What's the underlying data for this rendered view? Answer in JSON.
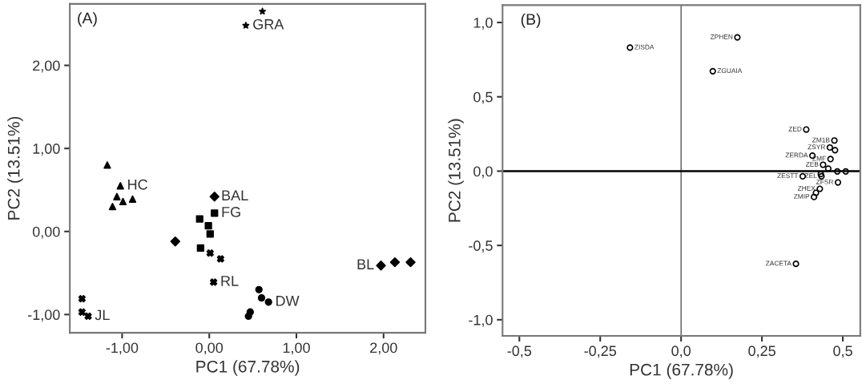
{
  "chart_data": [
    {
      "type": "scatter",
      "xlabel": "PC1 (67.78%)",
      "ylabel": "PC2 (13.51%)",
      "xlim": [
        -1.6,
        2.48
      ],
      "ylim": [
        -1.22,
        2.74
      ],
      "xticks": [
        {
          "value": -1,
          "label": "-1,00"
        },
        {
          "value": 0,
          "label": "0,00"
        },
        {
          "value": 1,
          "label": "1,00"
        },
        {
          "value": 2,
          "label": "2,00"
        }
      ],
      "yticks": [
        {
          "value": -1,
          "label": "-1,00"
        },
        {
          "value": 0,
          "label": "0,00"
        },
        {
          "value": 1,
          "label": "1,00"
        },
        {
          "value": 2,
          "label": "2,00"
        }
      ],
      "grid": false,
      "legend": false,
      "series": [
        {
          "color": "#000000",
          "marker": "star",
          "x": [
            0.42,
            0.61
          ],
          "values": [
            2.48,
            2.65
          ]
        },
        {
          "color": "#000000",
          "marker": "triangle",
          "x": [
            -1.17,
            -1.02,
            -1.06,
            -0.99,
            -0.88,
            -1.11
          ],
          "values": [
            0.8,
            0.55,
            0.42,
            0.36,
            0.39,
            0.3
          ]
        },
        {
          "color": "#000000",
          "marker": "diamond",
          "x": [
            0.06,
            -0.39
          ],
          "values": [
            0.42,
            -0.12
          ]
        },
        {
          "color": "#000000",
          "marker": "square",
          "x": [
            0.06,
            -0.11,
            -0.01,
            0.01,
            -0.1
          ],
          "values": [
            0.22,
            0.15,
            0.07,
            -0.03,
            -0.2
          ]
        },
        {
          "color": "#000000",
          "marker": "cross",
          "x": [
            0.01,
            0.13,
            0.05
          ],
          "values": [
            -0.26,
            -0.33,
            -0.61
          ]
        },
        {
          "color": "#000000",
          "marker": "circle",
          "x": [
            0.57,
            0.6,
            0.68,
            0.47,
            0.45
          ],
          "values": [
            -0.7,
            -0.8,
            -0.85,
            -0.97,
            -1.02
          ]
        },
        {
          "color": "#000000",
          "marker": "cross",
          "x": [
            -1.46,
            -1.46,
            -1.41,
            -1.39
          ],
          "values": [
            -0.81,
            -0.97,
            null,
            -1.02
          ]
        },
        {
          "color": "#000000",
          "marker": "diamond",
          "x": [
            1.97,
            2.13,
            2.31
          ],
          "values": [
            -0.41,
            -0.37,
            -0.37
          ]
        }
      ],
      "annotations": [
        "(A)",
        {
          "text": "GRA",
          "x": 0.42,
          "y": 2.48
        },
        {
          "text": "HC",
          "x": -1.02,
          "y": 0.55
        },
        {
          "text": "BAL",
          "x": 0.06,
          "y": 0.42
        },
        {
          "text": "FG",
          "x": 0.06,
          "y": 0.22
        },
        {
          "text": "RL",
          "x": 0.05,
          "y": -0.61
        },
        {
          "text": "DW",
          "x": 0.68,
          "y": -0.85
        },
        {
          "text": "JL",
          "x": -1.39,
          "y": -1.02
        },
        {
          "text": "BL",
          "x": 1.97,
          "y": -0.41
        }
      ]
    },
    {
      "type": "scatter",
      "xlabel": "PC1 (67.78%)",
      "ylabel": "PC2 (13.51%)",
      "xlim": [
        -0.552,
        0.554
      ],
      "ylim": [
        -1.109,
        1.117
      ],
      "xticks": [
        {
          "value": -0.5,
          "label": "-0,5"
        },
        {
          "value": -0.25,
          "label": "-0,25"
        },
        {
          "value": 0,
          "label": "0,0"
        },
        {
          "value": 0.25,
          "label": "0,25"
        },
        {
          "value": 0.5,
          "label": "0,5"
        }
      ],
      "yticks": [
        {
          "value": -1,
          "label": "-1,0"
        },
        {
          "value": -0.5,
          "label": "-0,5"
        },
        {
          "value": 0,
          "label": "0,0"
        },
        {
          "value": 0.5,
          "label": "0,5"
        },
        {
          "value": 1,
          "label": "1,0"
        }
      ],
      "grid": false,
      "legend": false,
      "marker": "circle",
      "ref_lines": [
        {
          "axis": "x",
          "value": 0,
          "color": "#555555"
        },
        {
          "axis": "y",
          "value": 0,
          "color": "#000000"
        }
      ],
      "series": [
        {
          "color": "#000000",
          "x": [
            -0.158,
            0.174,
            0.098,
            0.355,
            0.387,
            0.474,
            0.46,
            0.476,
            0.462,
            0.406,
            0.439,
            0.455,
            0.483,
            0.509,
            0.432,
            0.434,
            0.485,
            0.429,
            0.417,
            0.411,
            0.376
          ],
          "values": [
            0.831,
            0.9,
            0.672,
            -0.624,
            0.28,
            0.206,
            0.159,
            0.141,
            0.081,
            0.104,
            0.043,
            0.017,
            -0.002,
            -0.002,
            -0.02,
            -0.035,
            -0.076,
            -0.119,
            -0.146,
            -0.174,
            -0.035
          ]
        }
      ],
      "annotations": [
        "(B)",
        {
          "text": "ZISDA",
          "x": -0.158,
          "y": 0.831
        },
        {
          "text": "ZPHEN",
          "x": 0.174,
          "y": 0.9
        },
        {
          "text": "ZGUAIA",
          "x": 0.098,
          "y": 0.672
        },
        {
          "text": "ZACETA",
          "x": 0.355,
          "y": -0.624
        },
        {
          "text": "ZED",
          "x": 0.387,
          "y": 0.28
        },
        {
          "text": "ZSYR",
          "x": 0.46,
          "y": 0.159
        },
        {
          "text": "ZM1B",
          "x": 0.474,
          "y": 0.206
        },
        {
          "text": "ZMF",
          "x": 0.462,
          "y": 0.081
        },
        {
          "text": "ZERDA",
          "x": 0.406,
          "y": 0.104
        },
        {
          "text": "ZEB",
          "x": 0.439,
          "y": 0.043
        },
        {
          "text": "ZESTT",
          "x": 0.376,
          "y": -0.035
        },
        {
          "text": "ZEL",
          "x": 0.434,
          "y": -0.035
        },
        {
          "text": "ZFSR",
          "x": 0.485,
          "y": -0.076
        },
        {
          "text": "ZHEX",
          "x": 0.429,
          "y": -0.119
        },
        {
          "text": "ZMIP",
          "x": 0.411,
          "y": -0.174
        }
      ]
    }
  ]
}
